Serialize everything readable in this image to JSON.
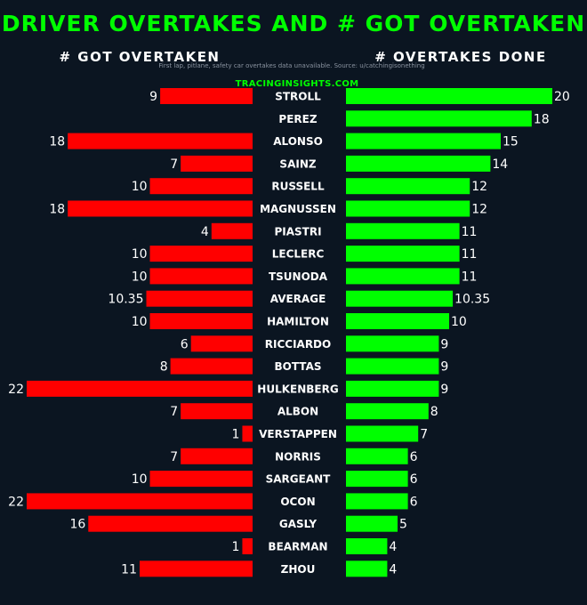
{
  "chart_data": {
    "type": "bar",
    "title": "DRIVER OVERTAKES AND # GOT OVERTAKEN",
    "left_header": "# GOT OVERTAKEN",
    "right_header": "# OVERTAKES DONE",
    "note": "First lap, pitlane, safety car overtakes data unavailable. Source: u/catchingisonething",
    "watermark": "TRACINGINSIGHTS.COM",
    "categories": [
      "STROLL",
      "PEREZ",
      "ALONSO",
      "SAINZ",
      "RUSSELL",
      "MAGNUSSEN",
      "PIASTRI",
      "LECLERC",
      "TSUNODA",
      "AVERAGE",
      "HAMILTON",
      "RICCIARDO",
      "BOTTAS",
      "HULKENBERG",
      "ALBON",
      "VERSTAPPEN",
      "NORRIS",
      "SARGEANT",
      "OCON",
      "GASLY",
      "BEARMAN",
      "ZHOU"
    ],
    "series": [
      {
        "name": "# GOT OVERTAKEN",
        "color": "#ff0000",
        "values": [
          9,
          null,
          18,
          7,
          10,
          18,
          4,
          10,
          10,
          10.35,
          10,
          6,
          8,
          22,
          7,
          1,
          7,
          10,
          22,
          16,
          1,
          11
        ]
      },
      {
        "name": "# OVERTAKES DONE",
        "color": "#00ff00",
        "values": [
          20,
          18,
          15,
          14,
          12,
          12,
          11,
          11,
          11,
          10.35,
          10,
          9,
          9,
          9,
          8,
          7,
          6,
          6,
          6,
          5,
          4,
          4
        ]
      }
    ],
    "xlim_left": [
      0,
      22
    ],
    "xlim_right": [
      0,
      20
    ]
  }
}
